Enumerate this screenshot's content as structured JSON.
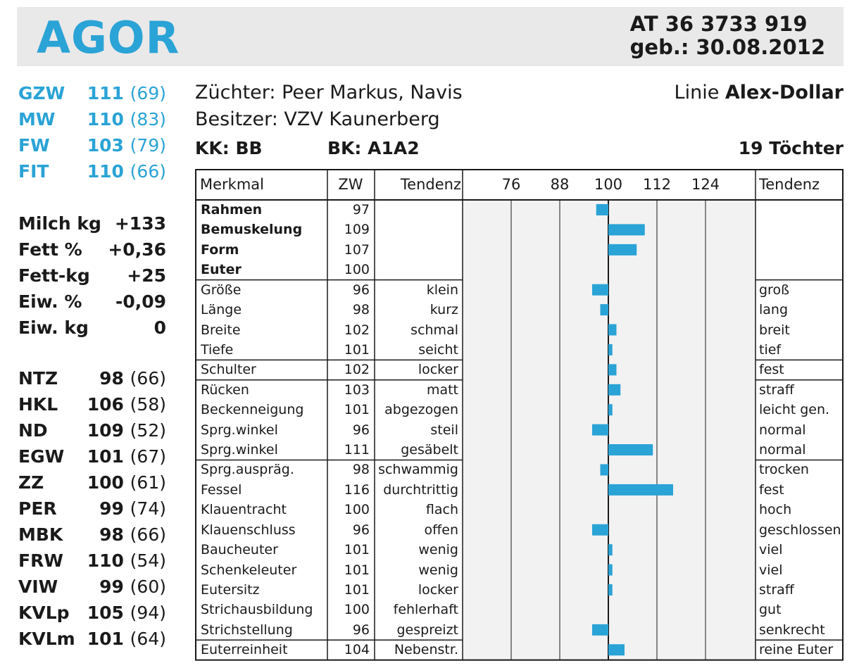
{
  "header": {
    "name": "AGOR",
    "reg_number": "AT 36 3733 919",
    "birth": "geb.: 30.08.2012"
  },
  "indices": [
    {
      "label": "GZW",
      "value": "111",
      "paren": "(69)"
    },
    {
      "label": "MW",
      "value": "110",
      "paren": "(83)"
    },
    {
      "label": "FW",
      "value": "103",
      "paren": "(79)"
    },
    {
      "label": "FIT",
      "value": "110",
      "paren": "(66)"
    }
  ],
  "milk": [
    {
      "label": "Milch kg",
      "value": "+133"
    },
    {
      "label": "Fett %",
      "value": "+0,36"
    },
    {
      "label": "Fett-kg",
      "value": "+25"
    },
    {
      "label": "Eiw. %",
      "value": "-0,09"
    },
    {
      "label": "Eiw. kg",
      "value": "0"
    }
  ],
  "fitness": [
    {
      "label": "NTZ",
      "value": "98",
      "paren": "(66)"
    },
    {
      "label": "HKL",
      "value": "106",
      "paren": "(58)"
    },
    {
      "label": "ND",
      "value": "109",
      "paren": "(52)"
    },
    {
      "label": "EGW",
      "value": "101",
      "paren": "(67)"
    },
    {
      "label": "ZZ",
      "value": "100",
      "paren": "(61)"
    },
    {
      "label": "PER",
      "value": "99",
      "paren": "(74)"
    },
    {
      "label": "MBK",
      "value": "98",
      "paren": "(66)"
    },
    {
      "label": "FRW",
      "value": "110",
      "paren": "(54)"
    },
    {
      "label": "VIW",
      "value": "99",
      "paren": "(60)"
    },
    {
      "label": "KVLp",
      "value": "105",
      "paren": "(94)"
    },
    {
      "label": "KVLm",
      "value": "101",
      "paren": "(64)"
    }
  ],
  "info": {
    "breeder": "Züchter: Peer Markus, Navis",
    "owner": "Besitzer: VZV Kaunerberg",
    "line_prefix": "Linie",
    "line_name": "Alex-Dollar",
    "kk": "KK: BB",
    "bk": "BK: A1A2",
    "daughters": "19 Töchter"
  },
  "colors": {
    "accent": "#2aa3d6",
    "header_bg": "#e9e9e9",
    "chart_bg": "#f2f2f2",
    "bar": "#2aa3d6"
  },
  "chart_data": {
    "type": "bar",
    "orientation": "horizontal",
    "baseline": 100,
    "xlim": [
      76,
      124
    ],
    "ticks": [
      76,
      88,
      100,
      112,
      124
    ],
    "columns": {
      "trait": "Merkmal",
      "value": "ZW",
      "tendency_low": "Tendenz",
      "tendency_high": "Tendenz"
    },
    "groups": [
      [
        {
          "trait": "Rahmen",
          "value": 97,
          "low": "",
          "high": "",
          "bold": true
        },
        {
          "trait": "Bemuskelung",
          "value": 109,
          "low": "",
          "high": "",
          "bold": true
        },
        {
          "trait": "Form",
          "value": 107,
          "low": "",
          "high": "",
          "bold": true
        },
        {
          "trait": "Euter",
          "value": 100,
          "low": "",
          "high": "",
          "bold": true
        }
      ],
      [
        {
          "trait": "Größe",
          "value": 96,
          "low": "klein",
          "high": "groß"
        },
        {
          "trait": "Länge",
          "value": 98,
          "low": "kurz",
          "high": "lang"
        },
        {
          "trait": "Breite",
          "value": 102,
          "low": "schmal",
          "high": "breit"
        },
        {
          "trait": "Tiefe",
          "value": 101,
          "low": "seicht",
          "high": "tief"
        }
      ],
      [
        {
          "trait": "Schulter",
          "value": 102,
          "low": "locker",
          "high": "fest"
        }
      ],
      [
        {
          "trait": "Rücken",
          "value": 103,
          "low": "matt",
          "high": "straff"
        },
        {
          "trait": "Beckenneigung",
          "value": 101,
          "low": "abgezogen",
          "high": "leicht gen."
        },
        {
          "trait": "Sprg.winkel",
          "value": 96,
          "low": "steil",
          "high": "normal"
        },
        {
          "trait": "Sprg.winkel",
          "value": 111,
          "low": "gesäbelt",
          "high": "normal"
        }
      ],
      [
        {
          "trait": "Sprg.auspräg.",
          "value": 98,
          "low": "schwammig",
          "high": "trocken"
        },
        {
          "trait": "Fessel",
          "value": 116,
          "low": "durchtrittig",
          "high": "fest"
        },
        {
          "trait": "Klauentracht",
          "value": 100,
          "low": "flach",
          "high": "hoch"
        },
        {
          "trait": "Klauenschluss",
          "value": 96,
          "low": "offen",
          "high": "geschlossen"
        },
        {
          "trait": "Baucheuter",
          "value": 101,
          "low": "wenig",
          "high": "viel"
        },
        {
          "trait": "Schenkeleuter",
          "value": 101,
          "low": "wenig",
          "high": "viel"
        },
        {
          "trait": "Eutersitz",
          "value": 101,
          "low": "locker",
          "high": "straff"
        },
        {
          "trait": "Strichausbildung",
          "value": 100,
          "low": "fehlerhaft",
          "high": "gut"
        },
        {
          "trait": "Strichstellung",
          "value": 96,
          "low": "gespreizt",
          "high": "senkrecht"
        }
      ],
      [
        {
          "trait": "Euterreinheit",
          "value": 104,
          "low": "Nebenstr.",
          "high": "reine Euter"
        }
      ]
    ]
  }
}
